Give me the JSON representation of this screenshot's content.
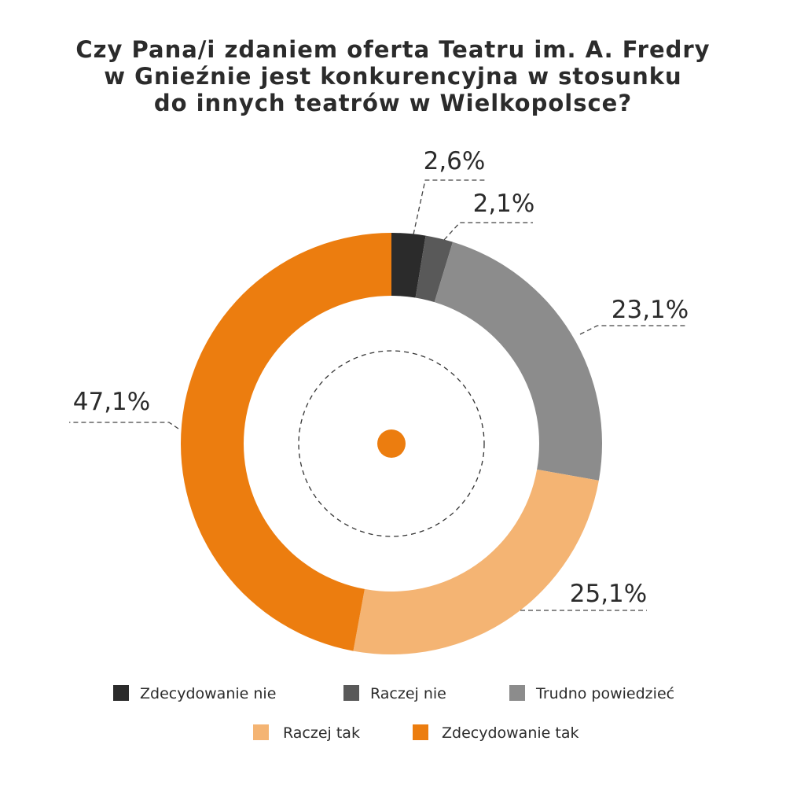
{
  "chart_data": {
    "type": "pie",
    "variant": "donut",
    "title_lines": [
      "Czy Pana/i zdaniem oferta Teatru im. A. Fredry",
      "w Gnieźnie jest konkurencyjna w stosunku",
      "do innych teatrów w Wielkopolsce?"
    ],
    "categories": [
      "Zdecydowanie nie",
      "Raczej nie",
      "Trudno powiedzieć",
      "Raczej tak",
      "Zdecydowanie tak"
    ],
    "values": [
      2.6,
      2.1,
      23.1,
      25.1,
      47.1
    ],
    "value_labels": [
      "2,6%",
      "2,1%",
      "23,1%",
      "25,1%",
      "47,1%"
    ],
    "colors": [
      "#2b2b2b",
      "#595959",
      "#8c8c8c",
      "#f4b473",
      "#ec7d0f"
    ],
    "center_dot_color": "#ec7d0f",
    "legend_placement": "bottom"
  }
}
